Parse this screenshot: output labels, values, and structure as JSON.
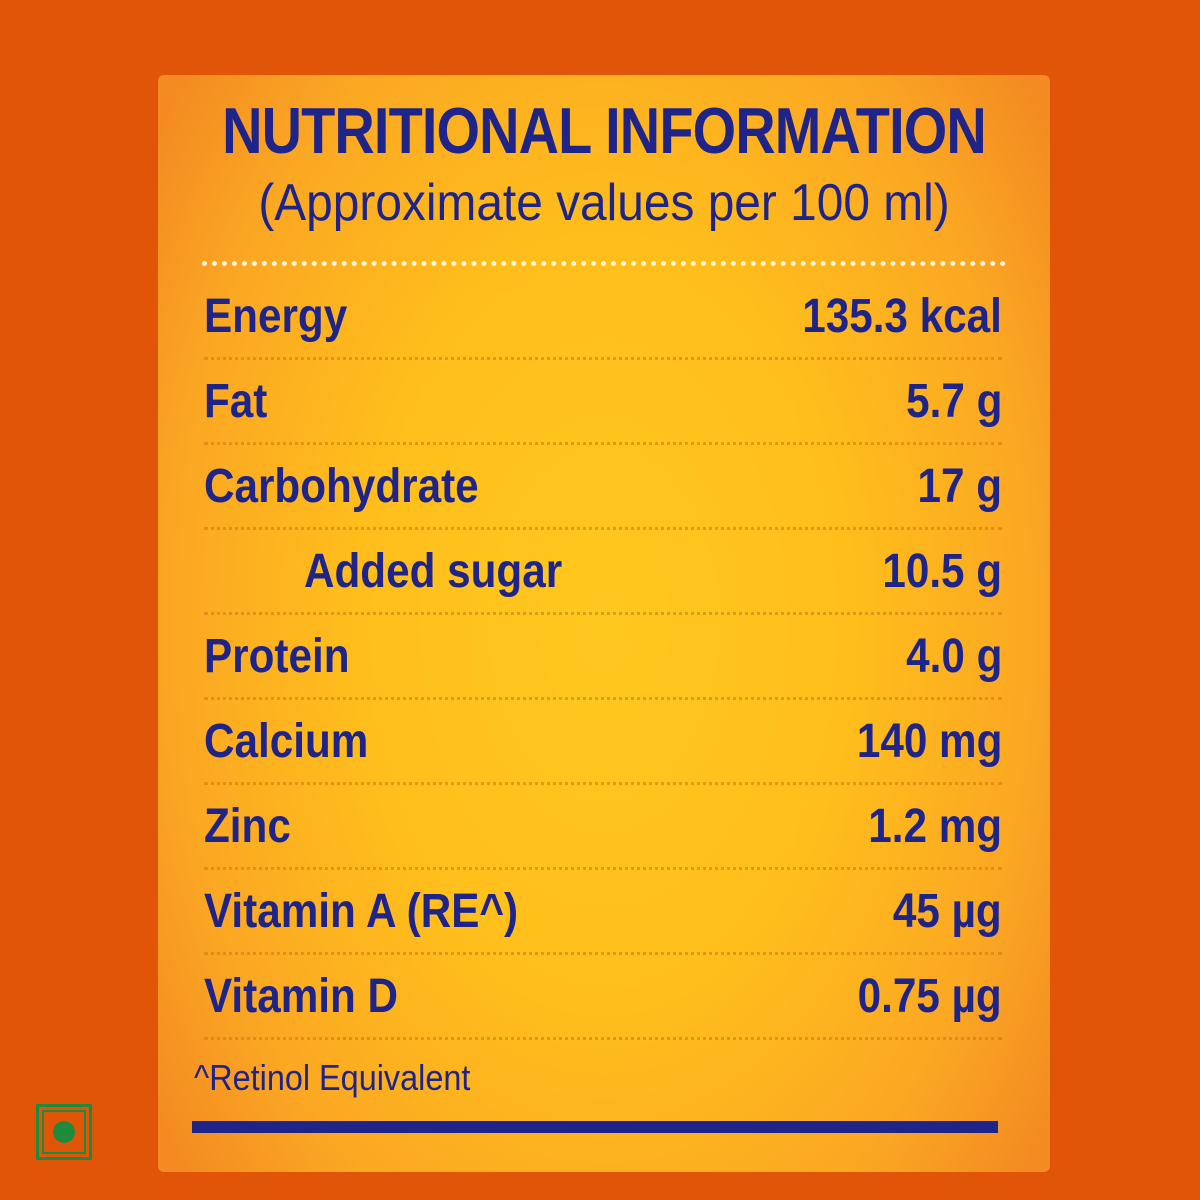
{
  "label": {
    "title": "NUTRITIONAL INFORMATION",
    "subtitle": "(Approximate values per 100 ml)",
    "rows": [
      {
        "name": "Energy",
        "value": "135.3 kcal"
      },
      {
        "name": "Fat",
        "value": "5.7 g"
      },
      {
        "name": "Carbohydrate",
        "value": "17 g"
      },
      {
        "name": "Added sugar",
        "value": "10.5 g"
      },
      {
        "name": "Protein",
        "value": "4.0 g"
      },
      {
        "name": "Calcium",
        "value": "140 mg"
      },
      {
        "name": "Zinc",
        "value": "1.2 mg"
      },
      {
        "name": "Vitamin A (RE^)",
        "value": "45 µg"
      },
      {
        "name": "Vitamin D",
        "value": "0.75 µg"
      }
    ],
    "footnote": "^Retinol Equivalent"
  },
  "colors": {
    "background": "#e05507",
    "panel": "#ffc81f",
    "text": "#1e2488",
    "veg_mark": "#1f8a3c"
  },
  "icons": {
    "veg_mark": "vegetarian-mark-icon"
  }
}
